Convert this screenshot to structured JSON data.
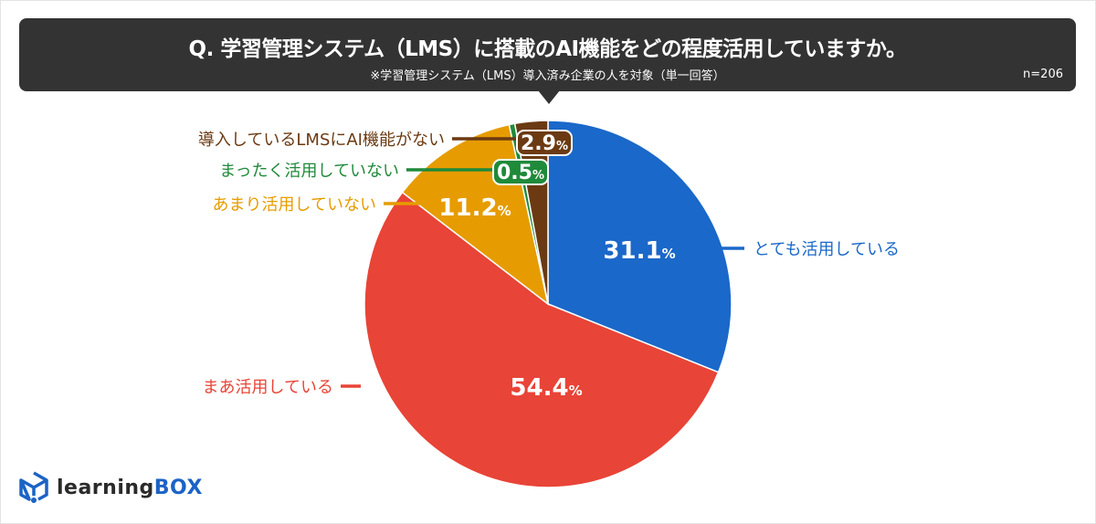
{
  "header": {
    "title": "Q. 学習管理システム（LMS）に搭載のAI機能をどの程度活用していますか。",
    "subtitle": "※学習管理システム（LMS）導入済み企業の人を対象（単一回答）",
    "n": "n=206"
  },
  "logo": {
    "text": "learning",
    "accent": "BOX"
  },
  "chart_data": {
    "type": "pie",
    "start": "top",
    "direction": "clockwise",
    "slices": [
      {
        "label": "とても活用している",
        "value": 31.1,
        "color": "#1a68c9"
      },
      {
        "label": "まあ活用している",
        "value": 54.4,
        "color": "#e84437"
      },
      {
        "label": "あまり活用していない",
        "value": 11.2,
        "color": "#e69c00"
      },
      {
        "label": "まったく活用していない",
        "value": 0.5,
        "color": "#1f8a3a"
      },
      {
        "label": "導入しているLMSにAI機能がない",
        "value": 2.9,
        "color": "#6b3a12"
      }
    ]
  }
}
